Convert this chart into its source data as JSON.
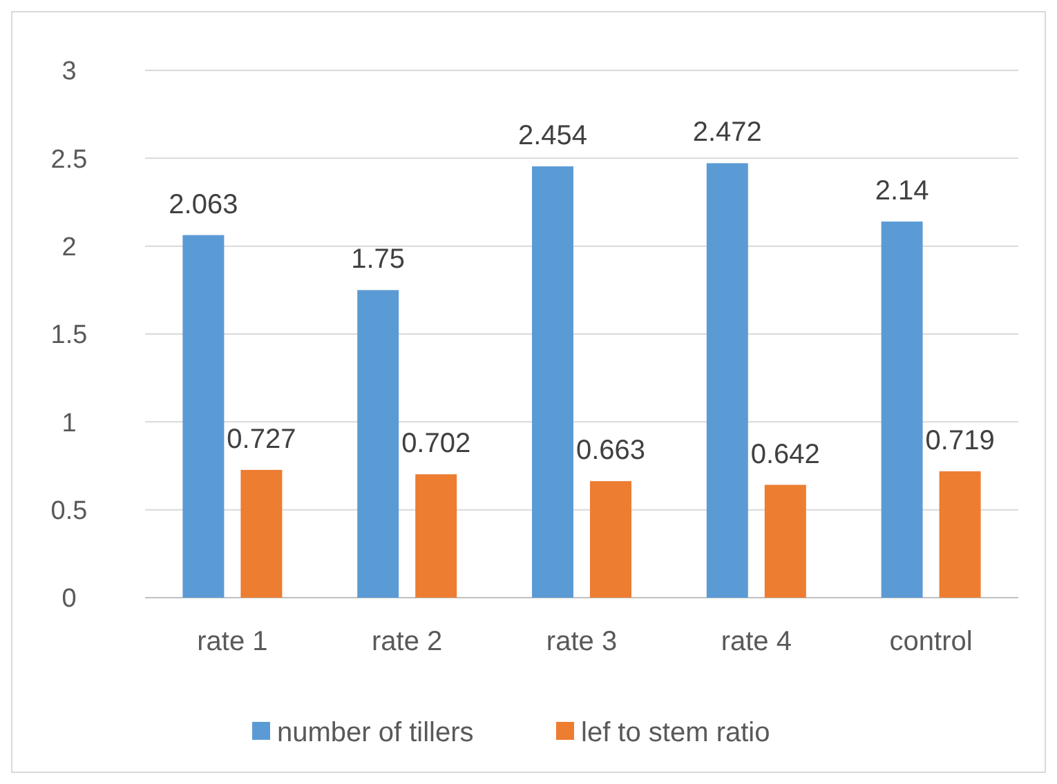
{
  "chart_data": {
    "type": "bar",
    "categories": [
      "rate 1",
      "rate 2",
      "rate 3",
      "rate 4",
      "control"
    ],
    "series": [
      {
        "name": "number of tillers",
        "color": "#5b9bd5",
        "values": [
          2.063,
          1.75,
          2.454,
          2.472,
          2.14
        ]
      },
      {
        "name": "lef to stem ratio",
        "color": "#ed7d31",
        "values": [
          0.727,
          0.702,
          0.663,
          0.642,
          0.719
        ]
      }
    ],
    "ylim": [
      0,
      3
    ],
    "yticks": [
      0,
      0.5,
      1,
      1.5,
      2,
      2.5,
      3
    ],
    "grid": "y",
    "legend": "bottom",
    "data_labels": true
  }
}
